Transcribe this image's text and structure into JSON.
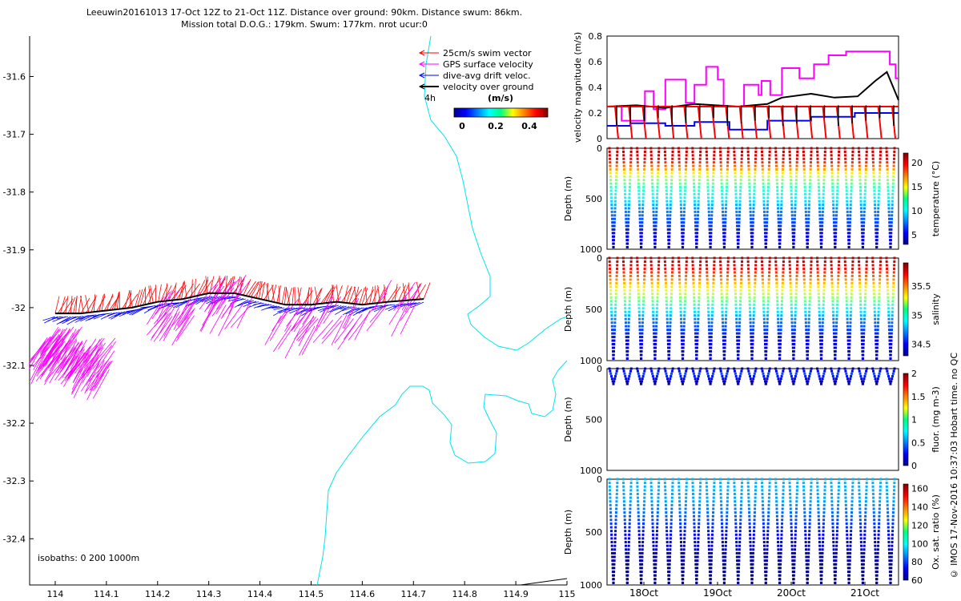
{
  "header": {
    "line1": "Leeuwin20161013 17-Oct 12Z to 21-Oct 11Z. Distance over ground: 90km. Distance swum: 86km.",
    "line2": "Mission total D.O.G.: 179km. Swum: 177km. nrot ucur:0"
  },
  "side_label": "© IMOS 17-Nov-2016 10:37:03 Hobart time. no QC",
  "colors": {
    "swim": "#ff0000",
    "gps": "#ff00ff",
    "drift": "#0000ff",
    "ground": "#000000",
    "coast": "#00e5ee",
    "isobath": "#000000"
  },
  "chart_data": [
    {
      "type": "map",
      "xticks": [
        "114",
        "114.1",
        "114.2",
        "114.3",
        "114.4",
        "114.5",
        "114.6",
        "114.7",
        "114.8",
        "114.9",
        "115"
      ],
      "yticks": [
        "-31.6",
        "-31.7",
        "-31.8",
        "-31.9",
        "-32",
        "-32.1",
        "-32.2",
        "-32.3",
        "-32.4"
      ],
      "xlim": [
        113.95,
        115.0
      ],
      "ylim": [
        -32.48,
        -31.53
      ],
      "legend": [
        {
          "label": "25cm/s swim vector",
          "color": "#ff0000"
        },
        {
          "label": "GPS surface velocity",
          "color": "#ff00ff"
        },
        {
          "label": "dive-avg drift veloc.",
          "color": "#0000ff"
        },
        {
          "label": "velocity over ground",
          "color": "#000000"
        }
      ],
      "time_marker": "4h",
      "colorbar": {
        "title": "(m/s)",
        "ticks": [
          "0",
          "0.2",
          "0.4"
        ]
      },
      "isobath_note": "isobaths: 0   200  1000m",
      "track": [
        [
          114.0,
          -32.01
        ],
        [
          114.05,
          -32.01
        ],
        [
          114.1,
          -32.005
        ],
        [
          114.15,
          -32.0
        ],
        [
          114.2,
          -31.99
        ],
        [
          114.25,
          -31.985
        ],
        [
          114.3,
          -31.975
        ],
        [
          114.35,
          -31.975
        ],
        [
          114.4,
          -31.985
        ],
        [
          114.45,
          -31.995
        ],
        [
          114.5,
          -31.995
        ],
        [
          114.55,
          -31.99
        ],
        [
          114.6,
          -31.995
        ],
        [
          114.65,
          -31.99
        ],
        [
          114.72,
          -31.985
        ]
      ]
    },
    {
      "type": "line",
      "ylabel": "velocity magnitude (m/s)",
      "yticks": [
        "0",
        "0.2",
        "0.4",
        "0.6",
        "0.8"
      ],
      "ylim": [
        0,
        0.8
      ],
      "series": [
        {
          "color": "#ff00ff",
          "values": [
            [
              0,
              0.25
            ],
            [
              0.05,
              0.25
            ],
            [
              0.05,
              0.14
            ],
            [
              0.13,
              0.14
            ],
            [
              0.13,
              0.37
            ],
            [
              0.16,
              0.37
            ],
            [
              0.16,
              0.23
            ],
            [
              0.2,
              0.23
            ],
            [
              0.2,
              0.46
            ],
            [
              0.27,
              0.46
            ],
            [
              0.27,
              0.28
            ],
            [
              0.3,
              0.28
            ],
            [
              0.3,
              0.42
            ],
            [
              0.34,
              0.42
            ],
            [
              0.34,
              0.56
            ],
            [
              0.38,
              0.56
            ],
            [
              0.38,
              0.46
            ],
            [
              0.4,
              0.46
            ],
            [
              0.4,
              0.25
            ],
            [
              0.47,
              0.25
            ],
            [
              0.47,
              0.42
            ],
            [
              0.52,
              0.42
            ],
            [
              0.52,
              0.34
            ],
            [
              0.53,
              0.34
            ],
            [
              0.53,
              0.45
            ],
            [
              0.56,
              0.45
            ],
            [
              0.56,
              0.34
            ],
            [
              0.6,
              0.34
            ],
            [
              0.6,
              0.55
            ],
            [
              0.66,
              0.55
            ],
            [
              0.66,
              0.47
            ],
            [
              0.71,
              0.47
            ],
            [
              0.71,
              0.58
            ],
            [
              0.76,
              0.58
            ],
            [
              0.76,
              0.65
            ],
            [
              0.82,
              0.65
            ],
            [
              0.82,
              0.68
            ],
            [
              0.97,
              0.68
            ],
            [
              0.97,
              0.58
            ],
            [
              0.99,
              0.58
            ],
            [
              0.99,
              0.47
            ],
            [
              1.0,
              0.47
            ]
          ]
        },
        {
          "color": "#0000ff",
          "values": [
            [
              0,
              0.1
            ],
            [
              0.08,
              0.1
            ],
            [
              0.08,
              0.12
            ],
            [
              0.2,
              0.12
            ],
            [
              0.2,
              0.1
            ],
            [
              0.3,
              0.1
            ],
            [
              0.3,
              0.13
            ],
            [
              0.42,
              0.13
            ],
            [
              0.42,
              0.07
            ],
            [
              0.55,
              0.07
            ],
            [
              0.55,
              0.14
            ],
            [
              0.7,
              0.14
            ],
            [
              0.7,
              0.17
            ],
            [
              0.85,
              0.17
            ],
            [
              0.85,
              0.2
            ],
            [
              1.0,
              0.2
            ]
          ]
        },
        {
          "color": "#000000",
          "values": [
            [
              0,
              0.25
            ],
            [
              0.1,
              0.26
            ],
            [
              0.2,
              0.24
            ],
            [
              0.3,
              0.27
            ],
            [
              0.45,
              0.25
            ],
            [
              0.55,
              0.27
            ],
            [
              0.6,
              0.32
            ],
            [
              0.7,
              0.35
            ],
            [
              0.78,
              0.32
            ],
            [
              0.86,
              0.33
            ],
            [
              0.92,
              0.45
            ],
            [
              0.96,
              0.52
            ],
            [
              1.0,
              0.3
            ]
          ]
        },
        {
          "color": "#ff0000",
          "values": [
            [
              0,
              0.25
            ],
            [
              1.0,
              0.25
            ]
          ]
        }
      ]
    },
    {
      "type": "scatter",
      "ylabel": "Depth (m)",
      "cbar_label": "temperature (°C)",
      "yticks": [
        "0",
        "500",
        "1000"
      ],
      "ylim": [
        1000,
        0
      ],
      "cbar_ticks": [
        "5",
        "10",
        "15",
        "20"
      ],
      "cbar_range": [
        3,
        22
      ],
      "profiles": 21,
      "profile_depth": [
        1000,
        0
      ],
      "values": [
        [
          0,
          21
        ],
        [
          100,
          20
        ],
        [
          200,
          17
        ],
        [
          300,
          13
        ],
        [
          400,
          11
        ],
        [
          500,
          10
        ],
        [
          600,
          8
        ],
        [
          700,
          7
        ],
        [
          800,
          6
        ],
        [
          900,
          5
        ],
        [
          1000,
          4
        ]
      ]
    },
    {
      "type": "scatter",
      "ylabel": "Depth (m)",
      "cbar_label": "salinity",
      "yticks": [
        "0",
        "500",
        "1000"
      ],
      "ylim": [
        1000,
        0
      ],
      "cbar_ticks": [
        "34.5",
        "35",
        "35.5"
      ],
      "cbar_range": [
        34.3,
        35.9
      ],
      "profiles": 21,
      "profile_depth": [
        1000,
        0
      ],
      "values": [
        [
          0,
          35.8
        ],
        [
          100,
          35.7
        ],
        [
          200,
          35.5
        ],
        [
          300,
          35.3
        ],
        [
          400,
          35.1
        ],
        [
          500,
          34.9
        ],
        [
          600,
          34.7
        ],
        [
          700,
          34.6
        ],
        [
          800,
          34.5
        ],
        [
          900,
          34.45
        ],
        [
          1000,
          34.4
        ]
      ]
    },
    {
      "type": "scatter",
      "ylabel": "Depth (m)",
      "cbar_label": "fluor. (mg m-3)",
      "yticks": [
        "0",
        "500",
        "1000"
      ],
      "ylim": [
        1000,
        0
      ],
      "cbar_ticks": [
        "0",
        "0.5",
        "1",
        "1.5",
        "2"
      ],
      "cbar_range": [
        0,
        2
      ],
      "profiles": 21,
      "profile_depth": [
        150,
        0
      ],
      "values": [
        [
          0,
          0.1
        ],
        [
          50,
          0.4
        ],
        [
          100,
          0.2
        ],
        [
          150,
          0.05
        ]
      ]
    },
    {
      "type": "scatter",
      "ylabel": "Depth (m)",
      "cbar_label": "Ox. sat. ratio (%)",
      "yticks": [
        "0",
        "500",
        "1000"
      ],
      "ylim": [
        1000,
        0
      ],
      "cbar_ticks": [
        "60",
        "80",
        "100",
        "120",
        "140",
        "160"
      ],
      "cbar_range": [
        60,
        165
      ],
      "xticks": [
        "18Oct",
        "19Oct",
        "20Oct",
        "21Oct"
      ],
      "profiles": 21,
      "profile_depth": [
        1000,
        0
      ],
      "values": [
        [
          0,
          92
        ],
        [
          200,
          90
        ],
        [
          400,
          80
        ],
        [
          600,
          68
        ],
        [
          800,
          62
        ],
        [
          1000,
          60
        ]
      ]
    }
  ]
}
